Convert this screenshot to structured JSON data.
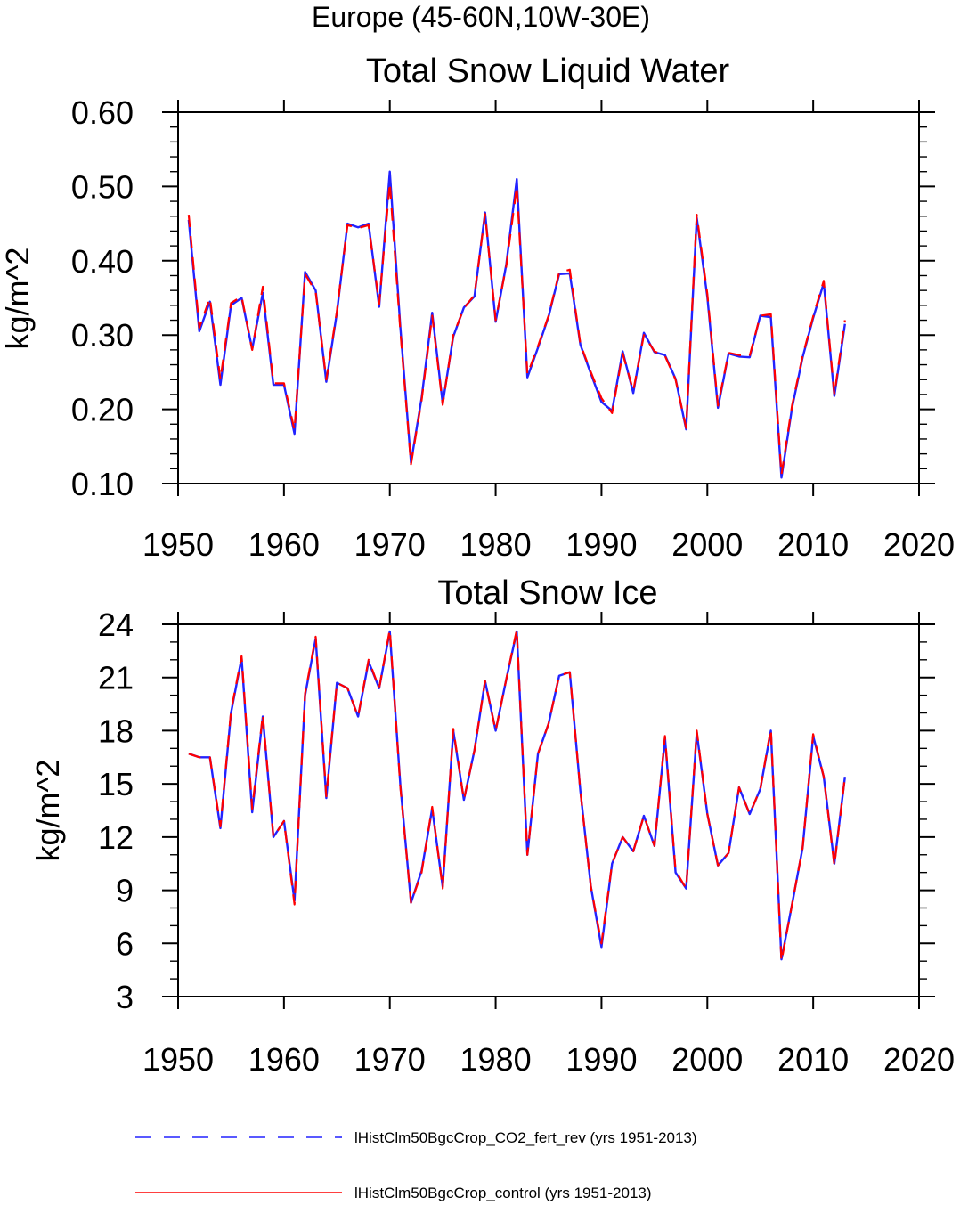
{
  "figure_title": "Europe (45-60N,10W-30E)",
  "colors": {
    "series_a": "#2222ff",
    "series_b": "#ff0000",
    "axes": "#000000"
  },
  "legend": {
    "items": [
      {
        "label": "lHistClm50BgcCrop_CO2_fert_rev (yrs 1951-2013)",
        "color": "#2222ff",
        "style": "dashed"
      },
      {
        "label": "lHistClm50BgcCrop_control (yrs 1951-2013)",
        "color": "#ff0000",
        "style": "solid"
      }
    ]
  },
  "chart_data": [
    {
      "type": "line",
      "title": "Total Snow Liquid Water",
      "ylabel": "kg/m^2",
      "xlim": [
        1950,
        2020
      ],
      "ylim": [
        0.1,
        0.6
      ],
      "x_ticks": [
        "1950",
        "1960",
        "1970",
        "1980",
        "1990",
        "2000",
        "2010",
        "2020"
      ],
      "y_ticks": [
        "0.10",
        "0.20",
        "0.30",
        "0.40",
        "0.50",
        "0.60"
      ],
      "x": [
        1951,
        1952,
        1953,
        1954,
        1955,
        1956,
        1957,
        1958,
        1959,
        1960,
        1961,
        1962,
        1963,
        1964,
        1965,
        1966,
        1967,
        1968,
        1969,
        1970,
        1971,
        1972,
        1973,
        1974,
        1975,
        1976,
        1977,
        1978,
        1979,
        1980,
        1981,
        1982,
        1983,
        1984,
        1985,
        1986,
        1987,
        1988,
        1989,
        1990,
        1991,
        1992,
        1993,
        1994,
        1995,
        1996,
        1997,
        1998,
        1999,
        2000,
        2001,
        2002,
        2003,
        2004,
        2005,
        2006,
        2007,
        2008,
        2009,
        2010,
        2011,
        2012,
        2013
      ],
      "series": [
        {
          "name": "lHistClm50BgcCrop_CO2_fert_rev (yrs 1951-2013)",
          "values": [
            0.455,
            0.305,
            0.345,
            0.233,
            0.34,
            0.35,
            0.281,
            0.357,
            0.233,
            0.233,
            0.167,
            0.385,
            0.36,
            0.237,
            0.33,
            0.45,
            0.445,
            0.45,
            0.338,
            0.52,
            0.31,
            0.128,
            0.215,
            0.33,
            0.208,
            0.298,
            0.337,
            0.352,
            0.465,
            0.318,
            0.395,
            0.51,
            0.243,
            0.283,
            0.325,
            0.382,
            0.383,
            0.287,
            0.248,
            0.21,
            0.198,
            0.278,
            0.222,
            0.303,
            0.277,
            0.273,
            0.241,
            0.173,
            0.458,
            0.351,
            0.202,
            0.275,
            0.271,
            0.27,
            0.326,
            0.324,
            0.108,
            0.202,
            0.27,
            0.323,
            0.37,
            0.218,
            0.315
          ]
        },
        {
          "name": "lHistClm50BgcCrop_control (yrs 1951-2013)",
          "values": [
            0.462,
            0.31,
            0.35,
            0.24,
            0.343,
            0.352,
            0.28,
            0.365,
            0.235,
            0.235,
            0.172,
            0.382,
            0.358,
            0.24,
            0.332,
            0.448,
            0.444,
            0.448,
            0.342,
            0.505,
            0.305,
            0.126,
            0.212,
            0.326,
            0.206,
            0.3,
            0.336,
            0.354,
            0.463,
            0.32,
            0.393,
            0.5,
            0.247,
            0.285,
            0.326,
            0.384,
            0.388,
            0.288,
            0.25,
            0.215,
            0.195,
            0.275,
            0.225,
            0.3,
            0.278,
            0.272,
            0.24,
            0.175,
            0.462,
            0.355,
            0.205,
            0.276,
            0.273,
            0.272,
            0.326,
            0.328,
            0.112,
            0.205,
            0.272,
            0.325,
            0.373,
            0.22,
            0.32
          ]
        }
      ]
    },
    {
      "type": "line",
      "title": "Total Snow Ice",
      "ylabel": "kg/m^2",
      "xlim": [
        1950,
        2020
      ],
      "ylim": [
        3,
        24
      ],
      "x_ticks": [
        "1950",
        "1960",
        "1970",
        "1980",
        "1990",
        "2000",
        "2010",
        "2020"
      ],
      "y_ticks": [
        "3",
        "6",
        "9",
        "12",
        "15",
        "18",
        "21",
        "24"
      ],
      "x": [
        1951,
        1952,
        1953,
        1954,
        1955,
        1956,
        1957,
        1958,
        1959,
        1960,
        1961,
        1962,
        1963,
        1964,
        1965,
        1966,
        1967,
        1968,
        1969,
        1970,
        1971,
        1972,
        1973,
        1974,
        1975,
        1976,
        1977,
        1978,
        1979,
        1980,
        1981,
        1982,
        1983,
        1984,
        1985,
        1986,
        1987,
        1988,
        1989,
        1990,
        1991,
        1992,
        1993,
        1994,
        1995,
        1996,
        1997,
        1998,
        1999,
        2000,
        2001,
        2002,
        2003,
        2004,
        2005,
        2006,
        2007,
        2008,
        2009,
        2010,
        2011,
        2012,
        2013
      ],
      "series": [
        {
          "name": "lHistClm50BgcCrop_CO2_fert_rev (yrs 1951-2013)",
          "values": [
            16.7,
            16.5,
            16.5,
            12.5,
            19.0,
            22.1,
            13.4,
            18.8,
            12.0,
            12.9,
            8.4,
            20.0,
            23.2,
            14.2,
            20.7,
            20.4,
            18.8,
            21.9,
            20.4,
            23.6,
            14.9,
            8.3,
            10.1,
            13.6,
            9.2,
            18.0,
            14.1,
            16.9,
            20.8,
            18.0,
            20.9,
            23.6,
            11.0,
            16.7,
            18.4,
            21.1,
            21.3,
            14.6,
            9.2,
            5.8,
            10.5,
            12.0,
            11.2,
            13.2,
            11.5,
            17.6,
            10.0,
            9.1,
            17.9,
            13.3,
            10.4,
            11.1,
            14.8,
            13.3,
            14.7,
            18.0,
            5.1,
            8.2,
            11.4,
            17.7,
            15.4,
            10.5,
            15.4
          ]
        },
        {
          "name": "lHistClm50BgcCrop_control (yrs 1951-2013)",
          "values": [
            16.7,
            16.5,
            16.5,
            12.6,
            19.1,
            22.2,
            13.6,
            18.9,
            12.0,
            12.9,
            8.2,
            20.1,
            23.3,
            14.3,
            20.7,
            20.4,
            18.8,
            22.0,
            20.4,
            23.7,
            14.8,
            8.3,
            10.0,
            13.7,
            9.1,
            18.1,
            14.1,
            16.9,
            20.8,
            18.0,
            20.9,
            23.7,
            11.0,
            16.7,
            18.4,
            21.1,
            21.3,
            14.6,
            9.2,
            6.0,
            10.5,
            12.0,
            11.2,
            13.2,
            11.5,
            17.7,
            10.1,
            9.1,
            18.0,
            13.3,
            10.4,
            11.1,
            14.8,
            13.3,
            14.7,
            18.1,
            5.0,
            8.2,
            11.4,
            17.8,
            15.4,
            10.4,
            15.4
          ]
        }
      ]
    }
  ]
}
